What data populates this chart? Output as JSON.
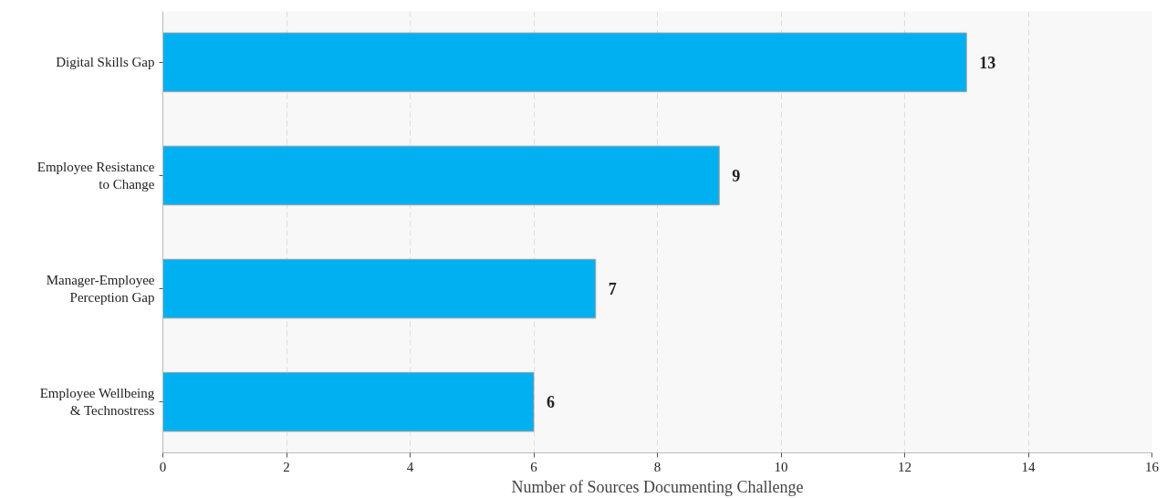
{
  "chart_data": {
    "type": "bar",
    "orientation": "horizontal",
    "xlabel": "Number of Sources Documenting Challenge",
    "categories": [
      "Digital Skills Gap",
      "Employee Resistance to Change",
      "Manager-Employee Perception Gap",
      "Employee Wellbeing & Technostress"
    ],
    "values": [
      13,
      9,
      7,
      6
    ],
    "color": "#00b0f0",
    "xlim": [
      0,
      16
    ],
    "xticks": [
      0,
      2,
      4,
      6,
      8,
      10,
      12,
      14,
      16
    ],
    "grid": "x",
    "data_labels": true
  }
}
